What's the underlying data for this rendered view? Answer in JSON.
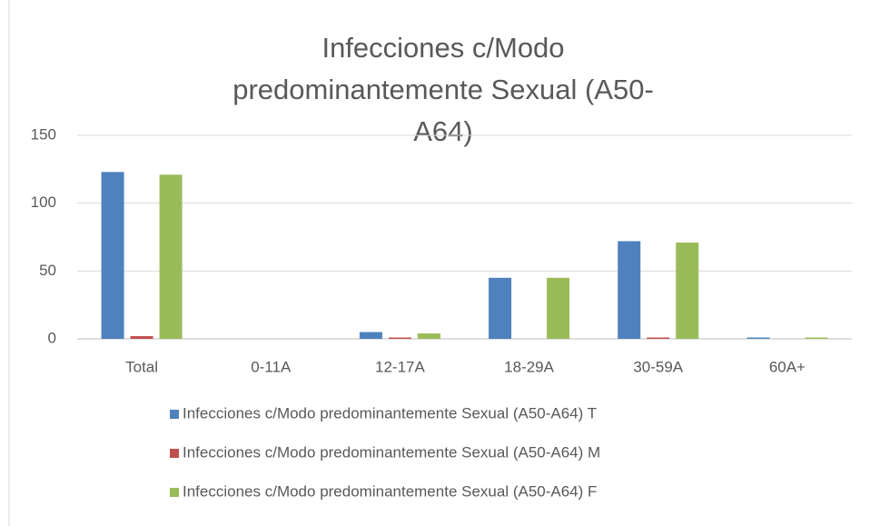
{
  "chart_data": {
    "type": "bar",
    "title": "Infecciones c/Modo predominantemente Sexual (A50-A64)",
    "categories": [
      "Total",
      "0-11A",
      "12-17A",
      "18-29A",
      "30-59A",
      "60A+"
    ],
    "series": [
      {
        "name": "Infecciones c/Modo predominantemente Sexual (A50-A64) T",
        "color": "#4f81bd",
        "values": [
          123,
          0,
          5,
          45,
          72,
          1
        ]
      },
      {
        "name": "Infecciones c/Modo predominantemente Sexual (A50-A64) M",
        "color": "#c0504d",
        "values": [
          2,
          0,
          1,
          0,
          1,
          0
        ]
      },
      {
        "name": "Infecciones c/Modo predominantemente Sexual (A50-A64) F",
        "color": "#9bbb59",
        "values": [
          121,
          0,
          4,
          45,
          71,
          1
        ]
      }
    ],
    "ylim": [
      0,
      150
    ],
    "yticks": [
      0,
      50,
      100,
      150
    ],
    "grid": true,
    "legend": "bottom"
  }
}
